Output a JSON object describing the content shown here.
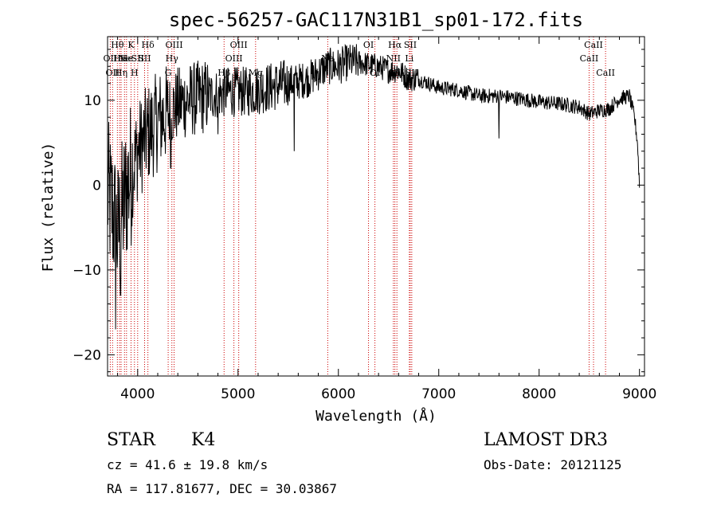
{
  "chart_data": {
    "type": "line",
    "title": "spec-56257-GAC117N31B1_sp01-172.fits",
    "xlabel": "Wavelength (Å)",
    "ylabel": "Flux (relative)",
    "xlim": [
      3700,
      9050
    ],
    "ylim": [
      -22.5,
      17.5
    ],
    "xticks": [
      4000,
      5000,
      6000,
      7000,
      8000,
      9000
    ],
    "yticks": [
      -20,
      -10,
      0,
      10
    ],
    "line_color": "#000000",
    "marker_color": "#cc0000",
    "spectrum_envelope": {
      "x": [
        3700,
        3750,
        3800,
        3850,
        3900,
        3950,
        4000,
        4100,
        4200,
        4300,
        4400,
        4500,
        4700,
        4900,
        5100,
        5300,
        5500,
        5700,
        5900,
        6000,
        6100,
        6200,
        6300,
        6400,
        6500,
        6600,
        6700,
        6800,
        7000,
        7200,
        7400,
        7600,
        7800,
        8000,
        8200,
        8400,
        8500,
        8600,
        8700,
        8800,
        8900,
        8950,
        8980,
        9000
      ],
      "y": [
        -1,
        -3,
        -6,
        -3,
        0,
        2,
        4,
        6,
        7.5,
        8.5,
        9.5,
        10,
        10.5,
        11,
        11,
        11.5,
        12,
        12.5,
        14,
        14,
        14.5,
        14.5,
        14.2,
        14,
        13.5,
        13.5,
        12.5,
        12.5,
        11.5,
        11.2,
        10.5,
        10.5,
        10.2,
        9.8,
        9.6,
        9.2,
        8.4,
        8.8,
        9,
        10.2,
        10.5,
        8,
        5,
        0
      ]
    },
    "dips": [
      {
        "x": 3780,
        "y": -17
      },
      {
        "x": 3830,
        "y": -13
      },
      {
        "x": 4330,
        "y": 2
      },
      {
        "x": 5560,
        "y": 4
      },
      {
        "x": 4800,
        "y": 6
      },
      {
        "x": 7600,
        "y": 5.5
      }
    ],
    "spectral_lines": [
      {
        "x": 3727,
        "label": "OII",
        "row": 1
      },
      {
        "x": 3750,
        "label": "OII",
        "row": 2
      },
      {
        "x": 3798,
        "label": "Hθ",
        "row": 0
      },
      {
        "x": 3820,
        "label": "He",
        "row": 1
      },
      {
        "x": 3835,
        "label": "Hη",
        "row": 2
      },
      {
        "x": 3869,
        "label": "Ne",
        "row": 1
      },
      {
        "x": 3889,
        "label": "He",
        "row": 1
      },
      {
        "x": 3934,
        "label": "K",
        "row": 0
      },
      {
        "x": 3968,
        "label": "H",
        "row": 2
      },
      {
        "x": 4000,
        "label": "SII",
        "row": 1
      },
      {
        "x": 4102,
        "label": "Hδ",
        "row": 0
      },
      {
        "x": 4069,
        "label": "SII",
        "row": 1
      },
      {
        "x": 4304,
        "label": "G",
        "row": 2
      },
      {
        "x": 4341,
        "label": "Hγ",
        "row": 1
      },
      {
        "x": 4363,
        "label": "OIII",
        "row": 0
      },
      {
        "x": 4861,
        "label": "Hβ",
        "row": 2
      },
      {
        "x": 4959,
        "label": "OIII",
        "row": 1
      },
      {
        "x": 5007,
        "label": "OIII",
        "row": 0
      },
      {
        "x": 5175,
        "label": "Mg",
        "row": 2
      },
      {
        "x": 5894,
        "label": "Na",
        "row": 1
      },
      {
        "x": 6300,
        "label": "OI",
        "row": 0
      },
      {
        "x": 6364,
        "label": "OI",
        "row": 2
      },
      {
        "x": 6548,
        "label": "NII",
        "row": 1
      },
      {
        "x": 6563,
        "label": "Hα",
        "row": 0
      },
      {
        "x": 6583,
        "label": "NII",
        "row": 2
      },
      {
        "x": 6707,
        "label": "Li",
        "row": 1
      },
      {
        "x": 6716,
        "label": "SII",
        "row": 0
      },
      {
        "x": 6731,
        "label": "SII",
        "row": 2
      },
      {
        "x": 8498,
        "label": "CaII",
        "row": 1
      },
      {
        "x": 8542,
        "label": "CaII",
        "row": 0
      },
      {
        "x": 8662,
        "label": "CaII",
        "row": 2
      }
    ]
  },
  "footer": {
    "object_class": "STAR",
    "subclass": "K4",
    "survey": "LAMOST DR3",
    "redshift": "cz = 41.6 ± 19.8 km/s",
    "obs_date": "Obs-Date: 20121125",
    "coords": "RA = 117.81677, DEC =  30.03867"
  }
}
